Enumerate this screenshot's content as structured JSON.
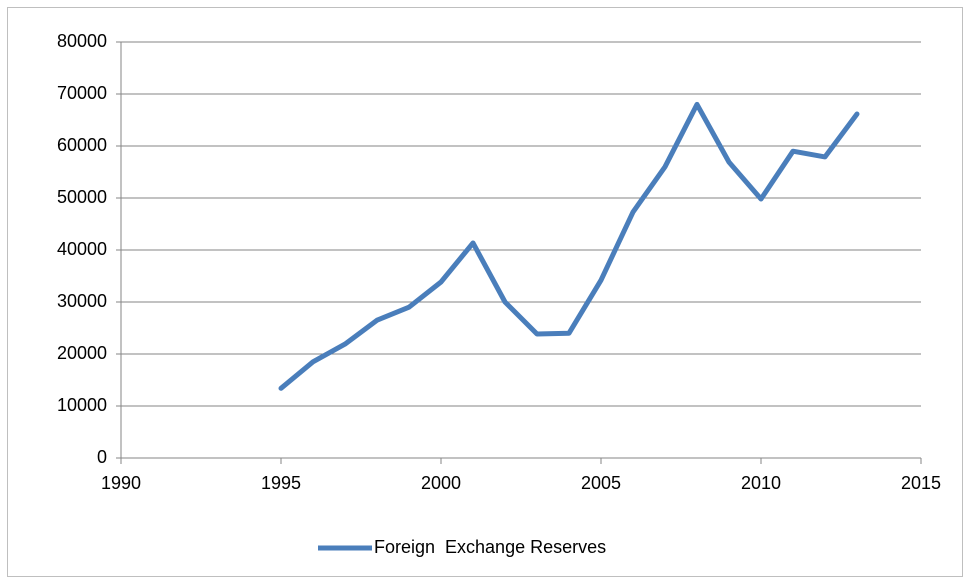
{
  "chart_data": {
    "type": "line",
    "x": [
      1995,
      1996,
      1997,
      1998,
      1999,
      2000,
      2001,
      2002,
      2003,
      2004,
      2005,
      2006,
      2007,
      2008,
      2009,
      2010,
      2011,
      2012,
      2013
    ],
    "series": [
      {
        "name": "Foreign  Exchange Reserves",
        "color": "#4a7ebb",
        "values": [
          13400,
          18500,
          21900,
          26500,
          29000,
          33850,
          41350,
          30000,
          23850,
          24000,
          34200,
          47300,
          56000,
          68000,
          56900,
          49800,
          59000,
          57900,
          66150
        ]
      }
    ],
    "xlim": [
      1990,
      2015
    ],
    "xticks": [
      1990,
      1995,
      2000,
      2005,
      2010,
      2015
    ],
    "ylim": [
      0,
      80000
    ],
    "yticks": [
      0,
      10000,
      20000,
      30000,
      40000,
      50000,
      60000,
      70000,
      80000
    ],
    "grid": true,
    "legend": "bottom"
  }
}
